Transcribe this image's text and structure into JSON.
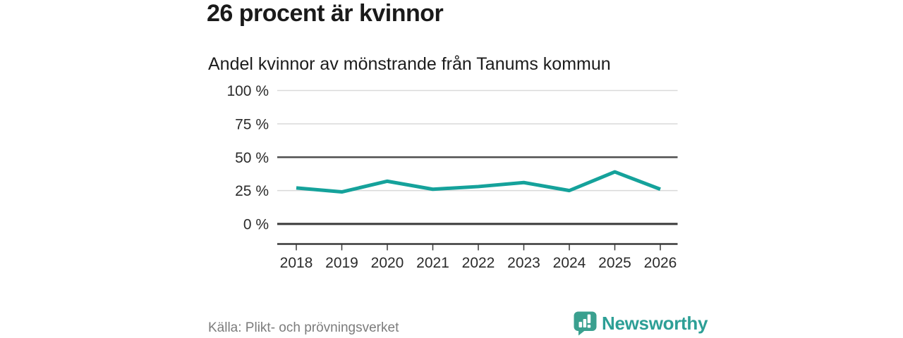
{
  "page": {
    "background": "#ffffff"
  },
  "chart_data": {
    "type": "line",
    "title": "26 procent är kvinnor",
    "subtitle": "Andel kvinnor av mönstrande från Tanums kommun",
    "source": "Källa: Plikt- och prövningsverket",
    "x": [
      2018,
      2019,
      2020,
      2021,
      2022,
      2023,
      2024,
      2025,
      2026
    ],
    "series": [
      {
        "name": "Andel kvinnor av mönstrande",
        "values": [
          27,
          24,
          32,
          26,
          28,
          31,
          25,
          39,
          26
        ]
      }
    ],
    "unit": "%",
    "ylim": [
      0,
      100
    ],
    "yticks": [
      0,
      25,
      50,
      75,
      100
    ],
    "ytick_labels": [
      "0 %",
      "25 %",
      "50 %",
      "75 %",
      "100 %"
    ],
    "grid": true,
    "legend": "none",
    "emphasized_gridlines": [
      0,
      50
    ],
    "colors": {
      "line": "#15a29b",
      "grid_light": "#d9d9d9",
      "grid_dark": "#4f4f4f",
      "axis": "#383838",
      "axis_text": "#2b2b2b"
    }
  },
  "brand": {
    "name": "Newsworthy",
    "color": "#2d9f96",
    "icon": "speech-bubble-barchart-exclamation"
  }
}
